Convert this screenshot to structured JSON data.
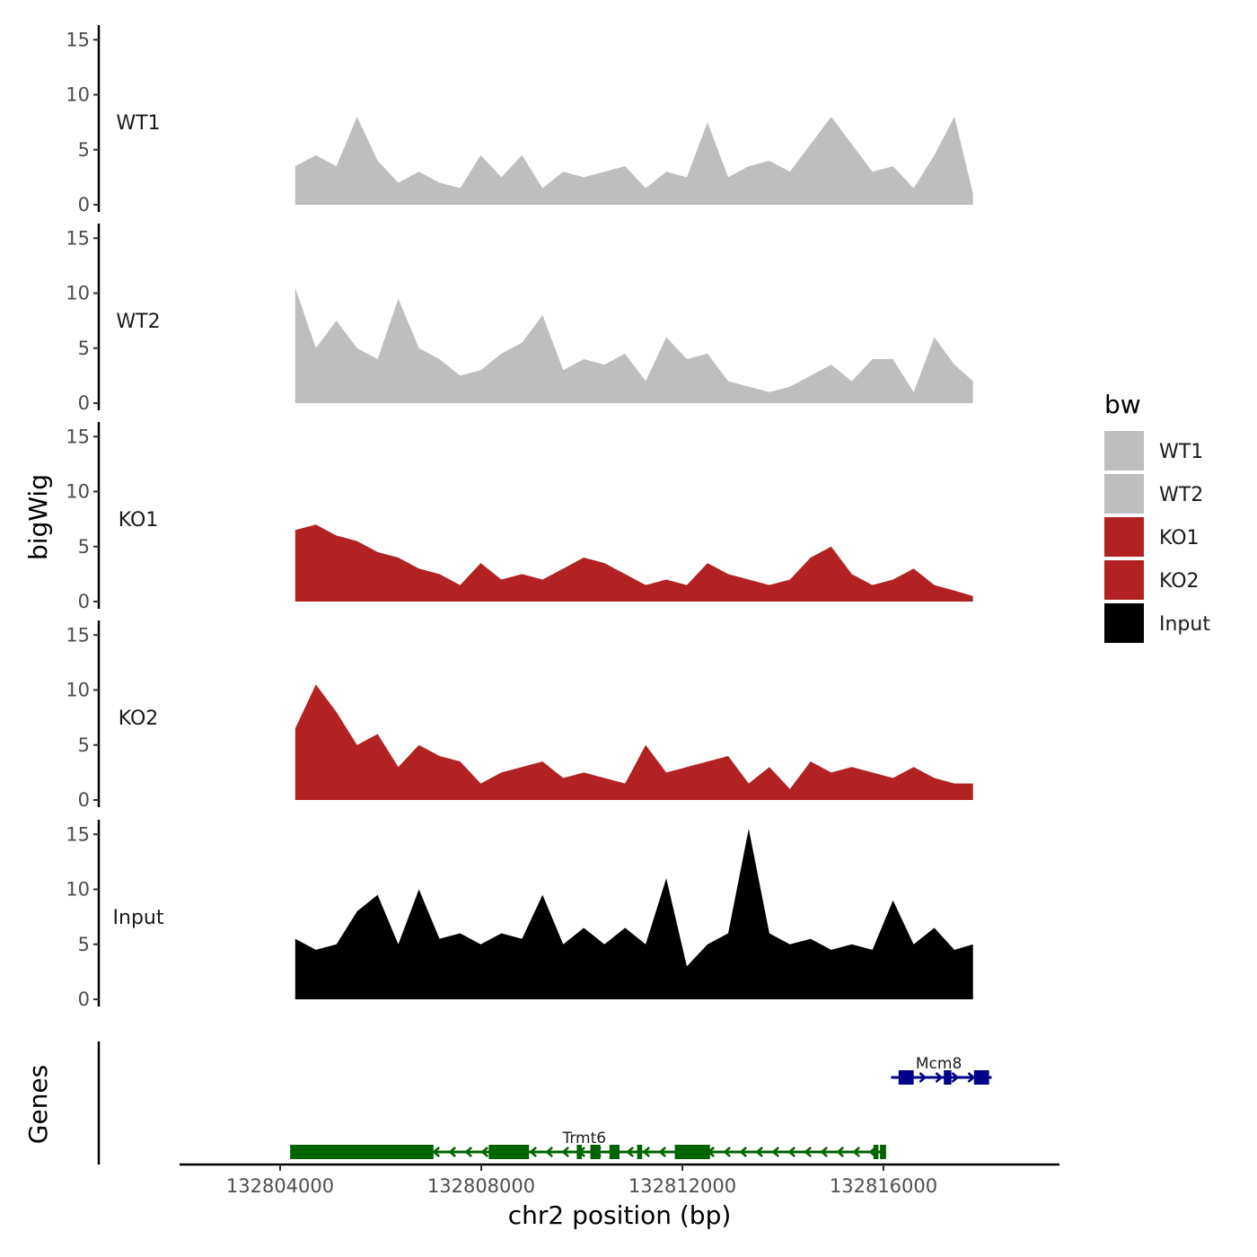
{
  "chart_data": {
    "type": "area",
    "title": "",
    "xlabel": "chr2 position (bp)",
    "ylabel": "bigWig",
    "genes_panel_label": "Genes",
    "xlim": [
      132802000,
      132819500
    ],
    "ylim": [
      0,
      16
    ],
    "y_ticks": [
      0,
      5,
      10,
      15
    ],
    "x_ticks": [
      132804000,
      132808000,
      132812000,
      132816000
    ],
    "x_tick_labels": [
      "132804000",
      "132808000",
      "132812000",
      "132816000"
    ],
    "grid": false,
    "legend": {
      "title": "bw",
      "placement": "right",
      "entries": [
        {
          "name": "WT1",
          "color": "#bebebe"
        },
        {
          "name": "WT2",
          "color": "#bebebe"
        },
        {
          "name": "KO1",
          "color": "#b22222"
        },
        {
          "name": "KO2",
          "color": "#b22222"
        },
        {
          "name": "Input",
          "color": "#000000"
        }
      ]
    },
    "x": [
      132804300,
      132804710,
      132805120,
      132805530,
      132805940,
      132806350,
      132806760,
      132807170,
      132807580,
      132807990,
      132808400,
      132808810,
      132809220,
      132809630,
      132810040,
      132810450,
      132810860,
      132811270,
      132811680,
      132812090,
      132812500,
      132812910,
      132813320,
      132813730,
      132814140,
      132814550,
      132814960,
      132815370,
      132815780,
      132816190,
      132816600,
      132817010,
      132817410,
      132817780
    ],
    "series": [
      {
        "name": "WT1",
        "color": "#bebebe",
        "values": [
          3.5,
          4.5,
          3.5,
          8,
          4,
          2,
          3,
          2,
          1.5,
          4.5,
          2.5,
          4.5,
          1.5,
          3,
          2.5,
          3,
          3.5,
          1.5,
          3,
          2.5,
          7.5,
          2.5,
          3.5,
          4,
          3,
          5.5,
          8,
          5.5,
          3,
          3.5,
          1.5,
          4.5,
          8,
          1
        ]
      },
      {
        "name": "WT2",
        "color": "#bebebe",
        "values": [
          10.5,
          5,
          7.5,
          5,
          4,
          9.5,
          5,
          4,
          2.5,
          3,
          4.5,
          5.5,
          8,
          3,
          4,
          3.5,
          4.5,
          2,
          6,
          4,
          4.5,
          2,
          1.5,
          1,
          1.5,
          2.5,
          3.5,
          2,
          4,
          4,
          1,
          6,
          3.5,
          2
        ]
      },
      {
        "name": "KO1",
        "color": "#b22222",
        "values": [
          6.5,
          7,
          6,
          5.5,
          4.5,
          4,
          3,
          2.5,
          1.5,
          3.5,
          2,
          2.5,
          2,
          3,
          4,
          3.5,
          2.5,
          1.5,
          2,
          1.5,
          3.5,
          2.5,
          2,
          1.5,
          2,
          4,
          5,
          2.5,
          1.5,
          2,
          3,
          1.5,
          1,
          0.5
        ]
      },
      {
        "name": "KO2",
        "color": "#b22222",
        "values": [
          6.5,
          10.5,
          8,
          5,
          6,
          3,
          5,
          4,
          3.5,
          1.5,
          2.5,
          3,
          3.5,
          2,
          2.5,
          2,
          1.5,
          5,
          2.5,
          3,
          3.5,
          4,
          1.5,
          3,
          1,
          3.5,
          2.5,
          3,
          2.5,
          2,
          3,
          2,
          1.5,
          1.5
        ]
      },
      {
        "name": "Input",
        "color": "#000000",
        "values": [
          5.5,
          4.5,
          5,
          8,
          9.5,
          5,
          10,
          5.5,
          6,
          5,
          6,
          5.5,
          9.5,
          5,
          6.5,
          5,
          6.5,
          5,
          11,
          3,
          5,
          6,
          15.5,
          6,
          5,
          5.5,
          4.5,
          5,
          4.5,
          9,
          5,
          6.5,
          4.5,
          5
        ]
      }
    ],
    "genes": [
      {
        "name": "Trmt6",
        "color": "#006400",
        "strand": "-",
        "start": 132804200,
        "end": 132816050,
        "label_x": 132810050,
        "exons": [
          [
            132804200,
            132807050
          ],
          [
            132808150,
            132808950
          ],
          [
            132809900,
            132810000
          ],
          [
            132810170,
            132810370
          ],
          [
            132810550,
            132810750
          ],
          [
            132811100,
            132811200
          ],
          [
            132811850,
            132812550
          ],
          [
            132815800,
            132815900
          ],
          [
            132815930,
            132816050
          ]
        ]
      },
      {
        "name": "Mcm8",
        "color": "#00008b",
        "strand": "+",
        "start": 132816150,
        "end": 132818150,
        "label_x": 132817100,
        "exons": [
          [
            132816300,
            132816600
          ],
          [
            132817200,
            132817350
          ],
          [
            132817800,
            132818100
          ]
        ]
      }
    ]
  }
}
